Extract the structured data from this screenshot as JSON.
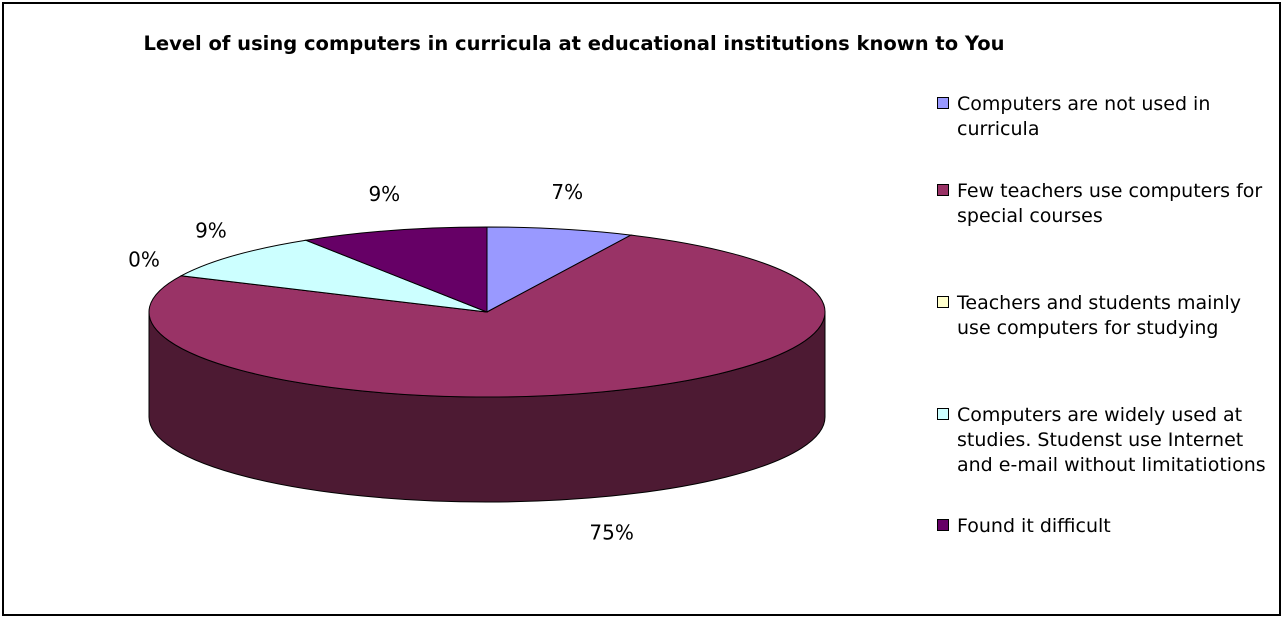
{
  "chart_data": {
    "type": "pie",
    "title": "Level of using computers in curricula at educational institutions known to You",
    "style": "3d",
    "legend_position": "right",
    "slices": [
      {
        "label": "Computers are not used in curricula",
        "value": 7,
        "display": "7%",
        "color": "#9999ff"
      },
      {
        "label": "Few teachers use computers for special courses",
        "value": 75,
        "display": "75%",
        "color": "#993366"
      },
      {
        "label": "Teachers and students mainly use computers for studying",
        "value": 0,
        "display": "0%",
        "color": "#ffffcc"
      },
      {
        "label": "Computers are widely used at studies. Studenst use Internet and e-mail without limitatiotions",
        "value": 9,
        "display": "9%",
        "color": "#ccffff"
      },
      {
        "label": "Found it difficult",
        "value": 9,
        "display": "9%",
        "color": "#660066"
      }
    ]
  }
}
